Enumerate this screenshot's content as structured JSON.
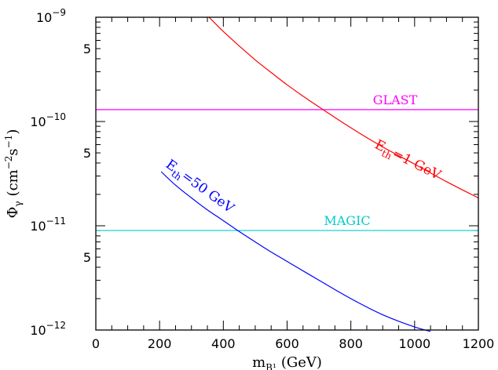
{
  "chart_data": {
    "type": "line",
    "xscale": "linear",
    "yscale": "log",
    "xlim": [
      0,
      1200
    ],
    "ylim": [
      1e-12,
      1e-09
    ],
    "xlabel": {
      "main": "m",
      "sub": "B¹",
      "unit": "(GeV)"
    },
    "ylabel": {
      "main": "Φ",
      "sub": "γ",
      "unit_pre": "(cm",
      "exp1": "−2",
      "mid": "s",
      "exp2": "−1",
      "unit_post": ")"
    },
    "x_ticks": [
      {
        "value": 0,
        "label": "0"
      },
      {
        "value": 200,
        "label": "200"
      },
      {
        "value": 400,
        "label": "400"
      },
      {
        "value": 600,
        "label": "600"
      },
      {
        "value": 800,
        "label": "800"
      },
      {
        "value": 1000,
        "label": "1000"
      },
      {
        "value": 1200,
        "label": "1200"
      }
    ],
    "y_ticks_major": [
      {
        "value": 1e-12,
        "base": "10",
        "exp": "−12"
      },
      {
        "value": 1e-11,
        "base": "10",
        "exp": "−11"
      },
      {
        "value": 1e-10,
        "base": "10",
        "exp": "−10"
      },
      {
        "value": 1e-09,
        "base": "10",
        "exp": "−9"
      }
    ],
    "y_ticks_labeled_minor": [
      {
        "value": 5e-12,
        "label": "5"
      },
      {
        "value": 5e-11,
        "label": "5"
      },
      {
        "value": 5e-10,
        "label": "5"
      }
    ],
    "series": [
      {
        "label_main": "E",
        "label_sub": "th",
        "label_rest": "=1 GeV",
        "color": "#ff0000",
        "x": [
          355,
          400,
          450,
          500,
          550,
          600,
          650,
          700,
          800,
          900,
          1000,
          1100,
          1200
        ],
        "y": [
          1e-09,
          7.3e-10,
          5.3e-10,
          3.9e-10,
          2.95e-10,
          2.25e-10,
          1.75e-10,
          1.38e-10,
          8.7e-11,
          5.7e-11,
          3.9e-11,
          2.65e-11,
          1.85e-11
        ]
      },
      {
        "label_main": "E",
        "label_sub": "th",
        "label_rest": "=50 GeV",
        "color": "#0000ff",
        "x": [
          205,
          250,
          300,
          350,
          400,
          450,
          500,
          550,
          600,
          700,
          800,
          900,
          1000,
          1050
        ],
        "y": [
          3.3e-11,
          2.45e-11,
          1.85e-11,
          1.42e-11,
          1.12e-11,
          8.8e-12,
          7e-12,
          5.6e-12,
          4.55e-12,
          3e-12,
          2e-12,
          1.4e-12,
          1.07e-12,
          9.7e-13
        ]
      }
    ],
    "reference_lines": [
      {
        "label": "GLAST",
        "y": 1.3e-10,
        "color": "#ff00ff"
      },
      {
        "label": "MAGIC",
        "y": 9e-12,
        "color": "#00cccc"
      }
    ]
  }
}
